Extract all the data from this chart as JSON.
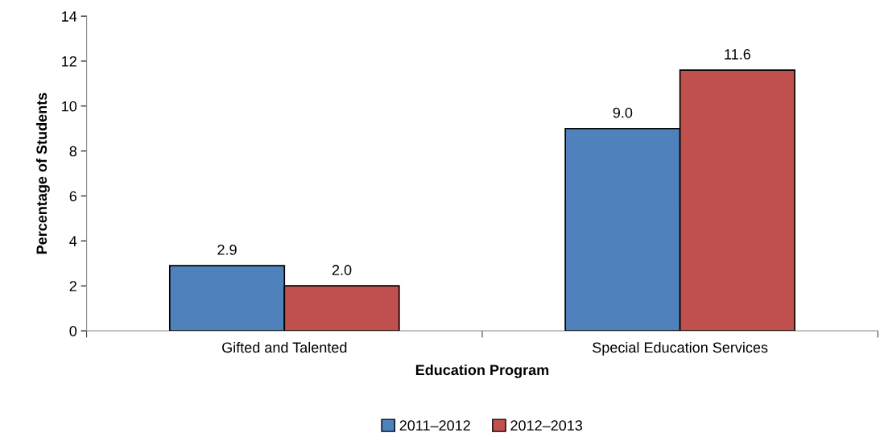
{
  "chart_data": {
    "type": "bar",
    "xlabel": "Education Program",
    "ylabel": "Percentage of Students",
    "categories": [
      "Gifted and Talented",
      "Special Education Services"
    ],
    "series": [
      {
        "name": "2011–2012",
        "color": "#4f81bd",
        "values": [
          2.9,
          9.0
        ],
        "value_labels": [
          "2.9",
          "9.0"
        ]
      },
      {
        "name": "2012–2013",
        "color": "#c0504d",
        "values": [
          2.0,
          11.6
        ],
        "value_labels": [
          "2.0",
          "11.6"
        ]
      }
    ],
    "ylim": [
      0,
      14
    ],
    "yticks": [
      0,
      2,
      4,
      6,
      8,
      10,
      12,
      14
    ],
    "grid": false,
    "legend": "bottom"
  }
}
